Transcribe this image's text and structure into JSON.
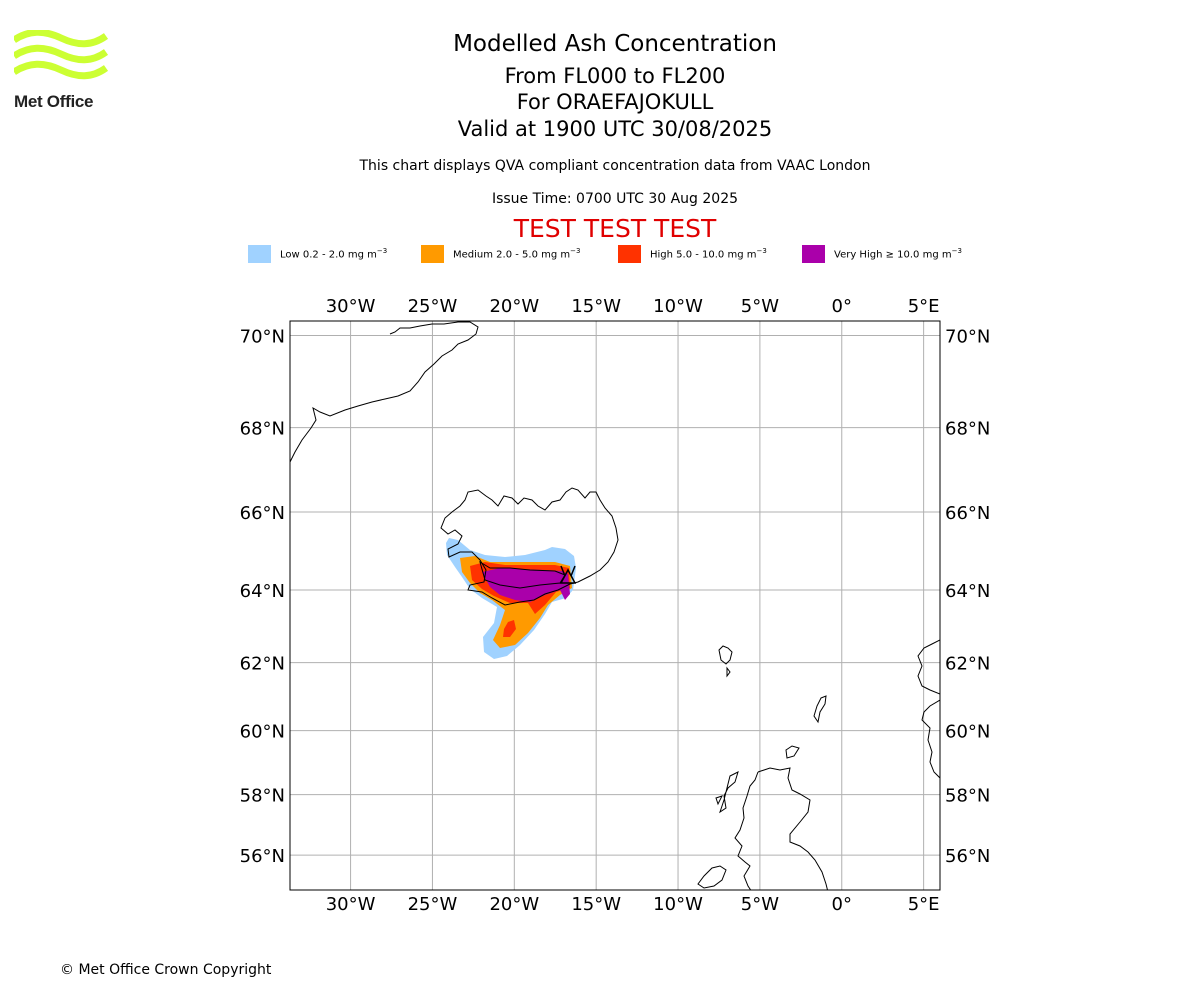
{
  "brand": {
    "name": "Met Office",
    "logo_color": "#ccff33"
  },
  "header": {
    "title": "Modelled Ash Concentration",
    "level_range": "From FL000 to FL200",
    "volcano": "For ORAEFAJOKULL",
    "valid_time": "Valid at 1900 UTC 30/08/2025",
    "description": "This chart displays QVA compliant concentration data from VAAC London",
    "issue_time": "Issue Time: 0700 UTC 30 Aug 2025",
    "test_banner": "TEST TEST TEST",
    "test_banner_color": "#e00000"
  },
  "legend": [
    {
      "label": "Low 0.2 - 2.0 mg m",
      "sup": "−3",
      "color": "#a0d2ff"
    },
    {
      "label": "Medium 2.0 - 5.0 mg m",
      "sup": "−3",
      "color": "#ff9a00"
    },
    {
      "label": "High 5.0 - 10.0 mg m",
      "sup": "−3",
      "color": "#ff3200"
    },
    {
      "label": "Very High  ≥  10.0 mg m",
      "sup": "−3",
      "color": "#aa00aa"
    }
  ],
  "map": {
    "lon_range": [
      -33.7,
      6.0
    ],
    "lat_range": [
      54.8,
      70.3
    ],
    "lon_ticks": [
      {
        "value": -30,
        "label": "30°W"
      },
      {
        "value": -25,
        "label": "25°W"
      },
      {
        "value": -20,
        "label": "20°W"
      },
      {
        "value": -15,
        "label": "15°W"
      },
      {
        "value": -10,
        "label": "10°W"
      },
      {
        "value": -5,
        "label": "5°W"
      },
      {
        "value": 0,
        "label": "0°"
      },
      {
        "value": 5,
        "label": "5°E"
      }
    ],
    "lat_ticks": [
      {
        "value": 70,
        "label": "70°N"
      },
      {
        "value": 68,
        "label": "68°N"
      },
      {
        "value": 66,
        "label": "66°N"
      },
      {
        "value": 64,
        "label": "64°N"
      },
      {
        "value": 62,
        "label": "62°N"
      },
      {
        "value": 60,
        "label": "60°N"
      },
      {
        "value": 58,
        "label": "58°N"
      },
      {
        "value": 56,
        "label": "56°N"
      }
    ],
    "grid": true,
    "grid_color": "#b0b0b0"
  },
  "footer": {
    "copyright": "© Met Office Crown Copyright"
  }
}
